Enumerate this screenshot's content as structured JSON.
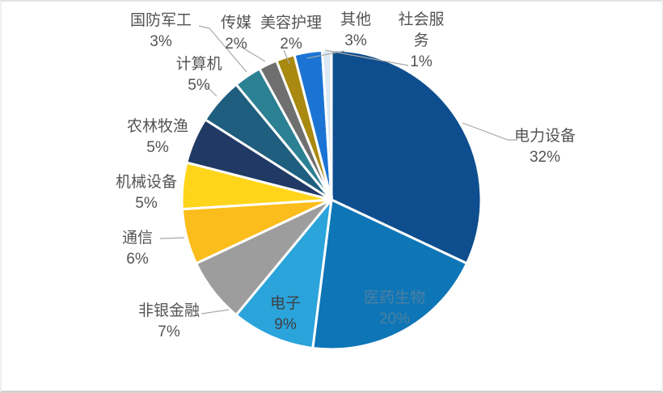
{
  "chart_data": {
    "type": "pie",
    "title": "",
    "direction": "clockwise",
    "start": "top",
    "legend": "none",
    "border_color": "#FFFFFF",
    "label_text_color": "#545454",
    "leader_line_color": "#A8A8A8",
    "slices": [
      {
        "label": "电力设备",
        "value": 32,
        "pct": "32%",
        "color": "#0F4E8E",
        "label_position": "outside-right"
      },
      {
        "label": "医药生物",
        "value": 20,
        "pct": "20%",
        "color": "#0E76B6",
        "label_position": "inside",
        "label_color": "#4C7FA4"
      },
      {
        "label": "电子",
        "value": 9,
        "pct": "9%",
        "color": "#2AA4DB",
        "label_position": "inside",
        "label_color": "#3F4043"
      },
      {
        "label": "非银金融",
        "value": 7,
        "pct": "7%",
        "color": "#9D9D9D",
        "label_position": "outside-left"
      },
      {
        "label": "通信",
        "value": 6,
        "pct": "6%",
        "color": "#FBBD1B",
        "label_position": "outside-left"
      },
      {
        "label": "机械设备",
        "value": 5,
        "pct": "5%",
        "color": "#FFD51C",
        "label_position": "outside-left"
      },
      {
        "label": "农林牧渔",
        "value": 5,
        "pct": "5%",
        "color": "#203A65",
        "label_position": "outside-left"
      },
      {
        "label": "计算机",
        "value": 5,
        "pct": "5%",
        "color": "#1F5E7E",
        "label_position": "outside-left"
      },
      {
        "label": "国防军工",
        "value": 3,
        "pct": "3%",
        "color": "#2C8094",
        "label_position": "outside-top-left"
      },
      {
        "label": "传媒",
        "value": 2,
        "pct": "2%",
        "color": "#6F6F6F",
        "label_position": "outside-top"
      },
      {
        "label": "美容护理",
        "value": 2,
        "pct": "2%",
        "color": "#A9890F",
        "label_position": "outside-top"
      },
      {
        "label": "其他",
        "value": 3,
        "pct": "3%",
        "color": "#1B74D4",
        "label_position": "outside-top"
      },
      {
        "label": "社会服务",
        "value": 1,
        "pct": "1%",
        "color": "#DCE8F4",
        "label_position": "outside-top-right"
      }
    ]
  }
}
